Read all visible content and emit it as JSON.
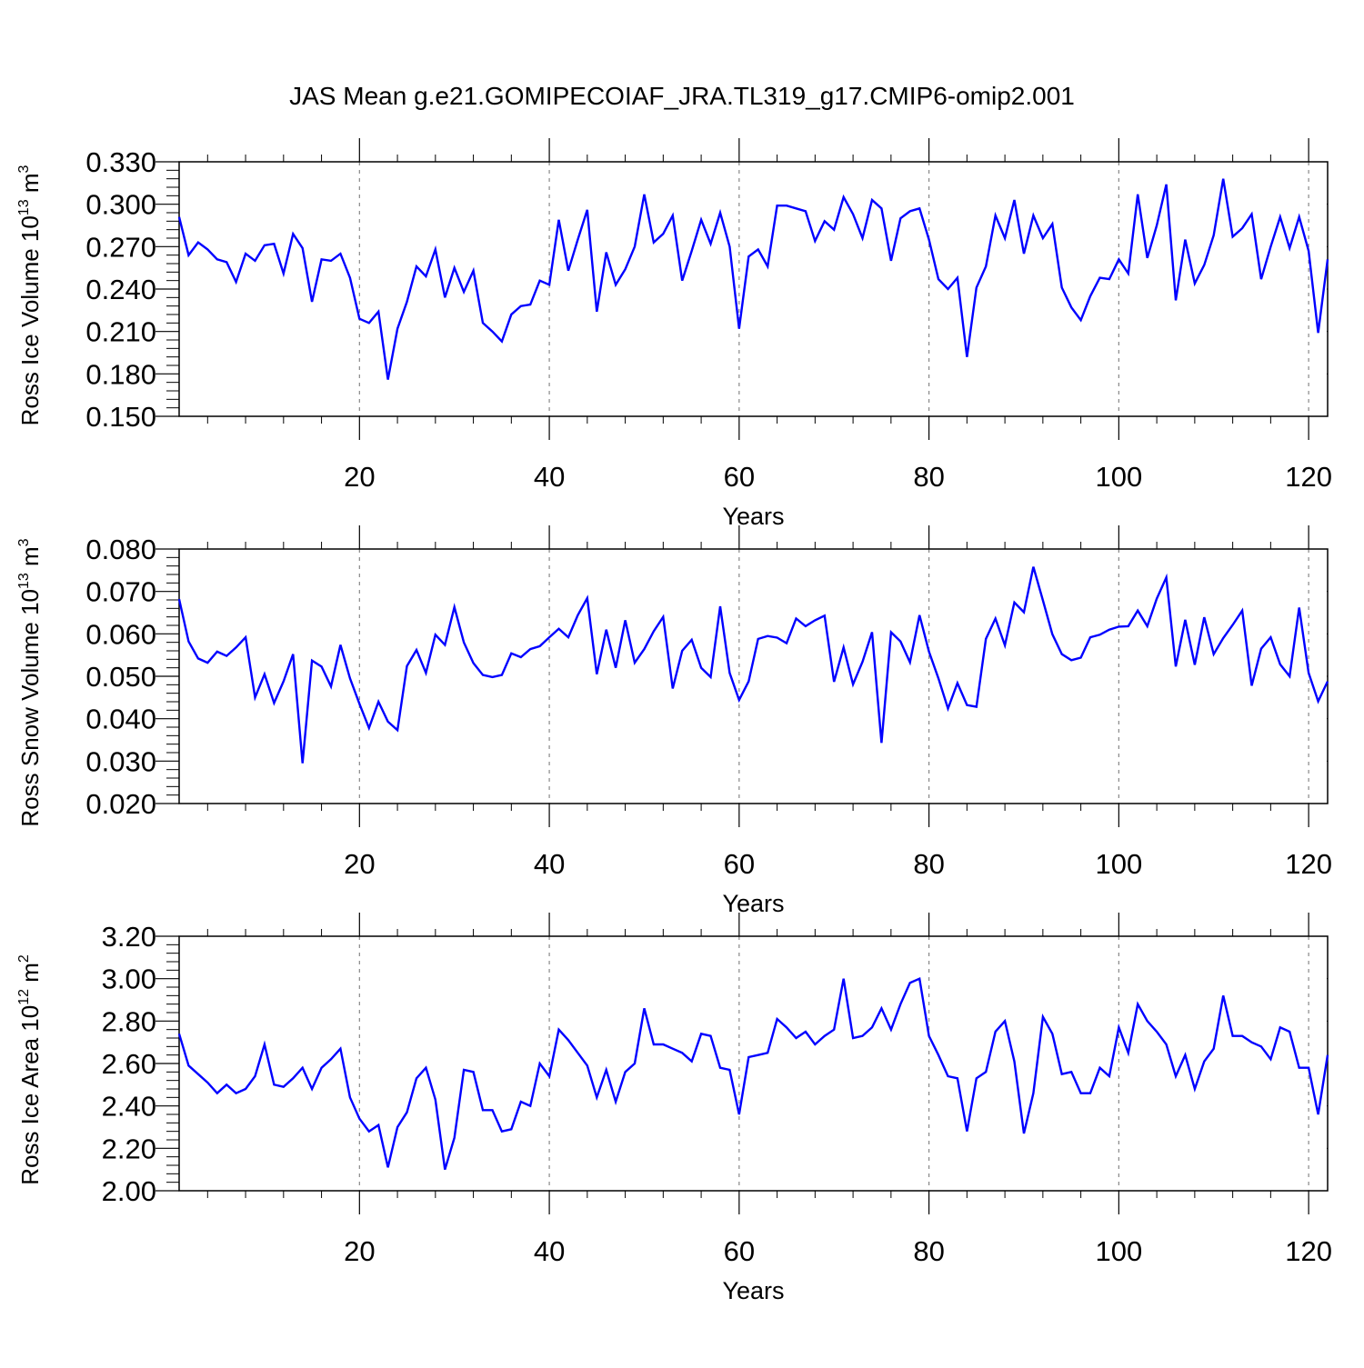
{
  "title": "JAS Mean g.e21.GOMIPECOIAF_JRA.TL319_g17.CMIP6-omip2.001",
  "colors": {
    "line": "#0000ff",
    "axis": "#000000",
    "grid": "#888888"
  },
  "chart_data": [
    {
      "type": "line",
      "ylabel": {
        "main": "Ross Ice Volume 10",
        "sup": "13",
        "unit": " m",
        "unit_sup": "3"
      },
      "xlabel": "Years",
      "xlim": [
        1,
        122
      ],
      "ylim": [
        0.15,
        0.33
      ],
      "yticks": [
        "0.150",
        "0.180",
        "0.210",
        "0.240",
        "0.270",
        "0.300",
        "0.330"
      ],
      "xticks": [
        "20",
        "40",
        "60",
        "80",
        "100",
        "120"
      ],
      "grid": "vertical-dashed",
      "values": [
        0.291,
        0.264,
        0.273,
        0.268,
        0.261,
        0.259,
        0.245,
        0.265,
        0.26,
        0.271,
        0.272,
        0.251,
        0.279,
        0.269,
        0.231,
        0.261,
        0.26,
        0.265,
        0.248,
        0.219,
        0.216,
        0.224,
        0.176,
        0.212,
        0.231,
        0.256,
        0.249,
        0.268,
        0.234,
        0.255,
        0.238,
        0.253,
        0.216,
        0.21,
        0.203,
        0.222,
        0.228,
        0.229,
        0.246,
        0.243,
        0.289,
        0.253,
        0.275,
        0.296,
        0.224,
        0.266,
        0.243,
        0.254,
        0.27,
        0.307,
        0.273,
        0.279,
        0.292,
        0.246,
        0.267,
        0.289,
        0.272,
        0.294,
        0.27,
        0.212,
        0.263,
        0.268,
        0.256,
        0.299,
        0.299,
        0.297,
        0.295,
        0.274,
        0.288,
        0.282,
        0.305,
        0.293,
        0.276,
        0.303,
        0.297,
        0.26,
        0.29,
        0.295,
        0.297,
        0.275,
        0.247,
        0.24,
        0.248,
        0.192,
        0.241,
        0.256,
        0.292,
        0.276,
        0.303,
        0.265,
        0.292,
        0.276,
        0.286,
        0.241,
        0.227,
        0.218,
        0.235,
        0.248,
        0.247,
        0.261,
        0.251,
        0.307,
        0.262,
        0.285,
        0.314,
        0.232,
        0.275,
        0.244,
        0.257,
        0.278,
        0.318,
        0.277,
        0.283,
        0.293,
        0.247,
        0.27,
        0.291,
        0.269,
        0.291,
        0.267,
        0.209,
        0.261
      ]
    },
    {
      "type": "line",
      "ylabel": {
        "main": "Ross Snow Volume 10",
        "sup": "13",
        "unit": " m",
        "unit_sup": "3"
      },
      "xlabel": "Years",
      "xlim": [
        1,
        122
      ],
      "ylim": [
        0.02,
        0.08
      ],
      "yticks": [
        "0.020",
        "0.030",
        "0.040",
        "0.050",
        "0.060",
        "0.070",
        "0.080"
      ],
      "xticks": [
        "20",
        "40",
        "60",
        "80",
        "100",
        "120"
      ],
      "grid": "vertical-dashed",
      "values": [
        0.0682,
        0.0582,
        0.0542,
        0.0532,
        0.0558,
        0.0548,
        0.0568,
        0.0592,
        0.045,
        0.0505,
        0.0437,
        0.0488,
        0.0552,
        0.0295,
        0.0537,
        0.0523,
        0.0476,
        0.0574,
        0.0495,
        0.0435,
        0.0378,
        0.044,
        0.0393,
        0.0373,
        0.0524,
        0.0562,
        0.0508,
        0.0598,
        0.0574,
        0.0663,
        0.058,
        0.0531,
        0.0503,
        0.0498,
        0.0503,
        0.0554,
        0.0545,
        0.0564,
        0.0571,
        0.0592,
        0.0612,
        0.0592,
        0.0644,
        0.0684,
        0.0505,
        0.061,
        0.052,
        0.0632,
        0.0532,
        0.0564,
        0.0606,
        0.064,
        0.0471,
        0.056,
        0.0586,
        0.052,
        0.0498,
        0.0665,
        0.0508,
        0.0444,
        0.0488,
        0.0588,
        0.0595,
        0.0591,
        0.0578,
        0.0636,
        0.0618,
        0.0632,
        0.0643,
        0.0487,
        0.0568,
        0.0481,
        0.0534,
        0.0604,
        0.0343,
        0.0604,
        0.0582,
        0.0533,
        0.0644,
        0.0558,
        0.0495,
        0.0424,
        0.0484,
        0.0432,
        0.0428,
        0.0588,
        0.0636,
        0.0573,
        0.0674,
        0.0651,
        0.0758,
        0.0679,
        0.0599,
        0.0552,
        0.0538,
        0.0544,
        0.0592,
        0.0598,
        0.061,
        0.0617,
        0.0618,
        0.0655,
        0.0618,
        0.0683,
        0.0733,
        0.0523,
        0.0633,
        0.0527,
        0.0639,
        0.0552,
        0.059,
        0.0621,
        0.0655,
        0.0478,
        0.0565,
        0.0592,
        0.0528,
        0.05,
        0.0662,
        0.0508,
        0.0441,
        0.0488
      ]
    },
    {
      "type": "line",
      "ylabel": {
        "main": "Ross Ice Area 10",
        "sup": "12",
        "unit": " m",
        "unit_sup": "2"
      },
      "xlabel": "Years",
      "xlim": [
        1,
        122
      ],
      "ylim": [
        2.0,
        3.2
      ],
      "yticks": [
        "2.00",
        "2.20",
        "2.40",
        "2.60",
        "2.80",
        "3.00",
        "3.20"
      ],
      "xticks": [
        "20",
        "40",
        "60",
        "80",
        "100",
        "120"
      ],
      "grid": "vertical-dashed",
      "values": [
        2.74,
        2.59,
        2.55,
        2.51,
        2.46,
        2.5,
        2.46,
        2.48,
        2.54,
        2.69,
        2.5,
        2.49,
        2.53,
        2.58,
        2.48,
        2.58,
        2.62,
        2.67,
        2.44,
        2.34,
        2.28,
        2.31,
        2.11,
        2.3,
        2.37,
        2.53,
        2.58,
        2.43,
        2.1,
        2.25,
        2.57,
        2.56,
        2.38,
        2.38,
        2.28,
        2.29,
        2.42,
        2.4,
        2.6,
        2.54,
        2.76,
        2.71,
        2.65,
        2.59,
        2.44,
        2.57,
        2.42,
        2.56,
        2.6,
        2.86,
        2.69,
        2.69,
        2.67,
        2.65,
        2.61,
        2.74,
        2.73,
        2.58,
        2.57,
        2.36,
        2.63,
        2.64,
        2.65,
        2.81,
        2.77,
        2.72,
        2.75,
        2.69,
        2.73,
        2.76,
        3.0,
        2.72,
        2.73,
        2.77,
        2.86,
        2.76,
        2.88,
        2.98,
        3.0,
        2.73,
        2.64,
        2.54,
        2.53,
        2.28,
        2.53,
        2.56,
        2.75,
        2.8,
        2.61,
        2.27,
        2.46,
        2.82,
        2.74,
        2.55,
        2.56,
        2.46,
        2.46,
        2.58,
        2.54,
        2.77,
        2.65,
        2.88,
        2.8,
        2.75,
        2.69,
        2.54,
        2.64,
        2.48,
        2.61,
        2.67,
        2.92,
        2.73,
        2.73,
        2.7,
        2.68,
        2.62,
        2.77,
        2.75,
        2.58,
        2.58,
        2.36,
        2.64
      ]
    }
  ]
}
